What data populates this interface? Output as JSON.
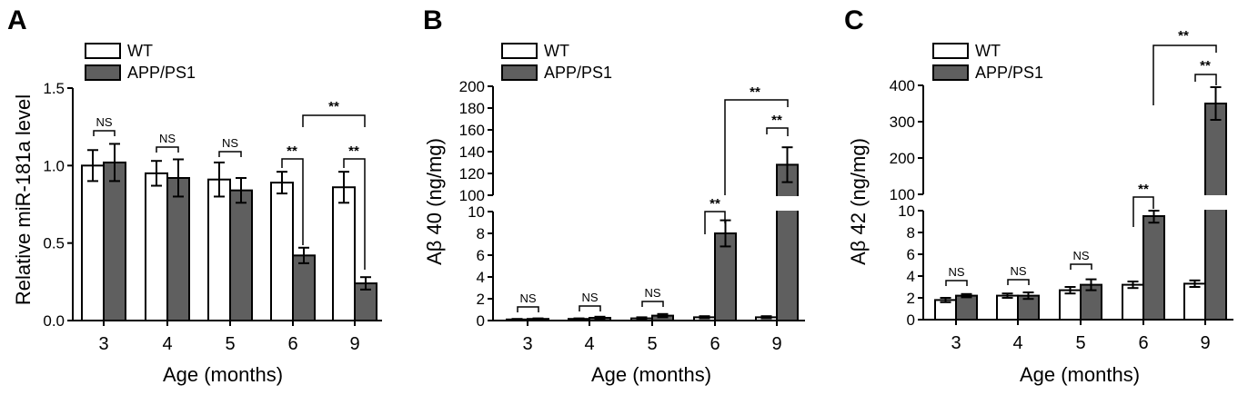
{
  "colors": {
    "wt": "#ffffff",
    "app": "#5f5f5f",
    "stroke": "#000000"
  },
  "legend": {
    "wt": "WT",
    "app": "APP/PS1"
  },
  "charts": [
    {
      "panel_label": "A",
      "ylabel": "Relative miR-181a level",
      "xlabel": "Age (months)",
      "categories": [
        "3",
        "4",
        "5",
        "6",
        "9"
      ],
      "yticks": [
        "0.0",
        "0.5",
        "1.0",
        "1.5"
      ],
      "annotations": {
        "ns": "NS",
        "star": "**"
      }
    },
    {
      "panel_label": "B",
      "ylabel": "Aβ 40 (ng/mg)",
      "xlabel": "Age (months)",
      "categories": [
        "3",
        "4",
        "5",
        "6",
        "9"
      ],
      "yticks_low": [
        "0",
        "2",
        "4",
        "6",
        "8",
        "10"
      ],
      "yticks_high": [
        "100",
        "120",
        "140",
        "160",
        "180",
        "200"
      ],
      "annotations": {
        "ns": "NS",
        "star": "**"
      }
    },
    {
      "panel_label": "C",
      "ylabel": "Aβ 42 (ng/mg)",
      "xlabel": "Age (months)",
      "categories": [
        "3",
        "4",
        "5",
        "6",
        "9"
      ],
      "yticks_low": [
        "0",
        "2",
        "4",
        "6",
        "8",
        "10"
      ],
      "yticks_high": [
        "100",
        "200",
        "300",
        "400"
      ],
      "annotations": {
        "ns": "NS",
        "star": "**"
      }
    }
  ],
  "chart_data": [
    {
      "type": "bar",
      "categories": [
        "3",
        "4",
        "5",
        "6",
        "9"
      ],
      "series": [
        {
          "name": "WT",
          "values": [
            1.0,
            0.95,
            0.91,
            0.89,
            0.86
          ],
          "errors": [
            0.1,
            0.08,
            0.11,
            0.07,
            0.1
          ]
        },
        {
          "name": "APP/PS1",
          "values": [
            1.02,
            0.92,
            0.84,
            0.42,
            0.24
          ],
          "errors": [
            0.12,
            0.12,
            0.08,
            0.05,
            0.04
          ]
        }
      ],
      "xlabel": "Age (months)",
      "ylabel": "Relative miR-181a level",
      "ylim": [
        0,
        1.5
      ],
      "significance": [
        "NS",
        "NS",
        "NS",
        "**",
        "**",
        "** (6 vs 9 APP/PS1)"
      ]
    },
    {
      "type": "bar",
      "categories": [
        "3",
        "4",
        "5",
        "6",
        "9"
      ],
      "series": [
        {
          "name": "WT",
          "values": [
            0.1,
            0.15,
            0.2,
            0.3,
            0.3
          ],
          "errors": [
            0.05,
            0.05,
            0.1,
            0.1,
            0.1
          ]
        },
        {
          "name": "APP/PS1",
          "values": [
            0.15,
            0.25,
            0.45,
            8.0,
            128
          ],
          "errors": [
            0.05,
            0.1,
            0.15,
            1.2,
            16
          ]
        }
      ],
      "xlabel": "Age (months)",
      "ylabel": "Aβ 40 (ng/mg)",
      "ylim": [
        0,
        200
      ],
      "axis_break": [
        10,
        100
      ],
      "significance": [
        "NS",
        "NS",
        "NS",
        "**",
        "**",
        "** (6 vs 9 APP/PS1)"
      ]
    },
    {
      "type": "bar",
      "categories": [
        "3",
        "4",
        "5",
        "6",
        "9"
      ],
      "series": [
        {
          "name": "WT",
          "values": [
            1.8,
            2.2,
            2.7,
            3.2,
            3.3
          ],
          "errors": [
            0.2,
            0.2,
            0.3,
            0.3,
            0.3
          ]
        },
        {
          "name": "APP/PS1",
          "values": [
            2.2,
            2.2,
            3.2,
            9.5,
            350
          ],
          "errors": [
            0.15,
            0.3,
            0.5,
            0.6,
            45
          ]
        }
      ],
      "xlabel": "Age (months)",
      "ylabel": "Aβ 42 (ng/mg)",
      "ylim": [
        0,
        400
      ],
      "axis_break": [
        10,
        100
      ],
      "significance": [
        "NS",
        "NS",
        "NS",
        "**",
        "**",
        "** (6 vs 9 APP/PS1)"
      ]
    }
  ]
}
